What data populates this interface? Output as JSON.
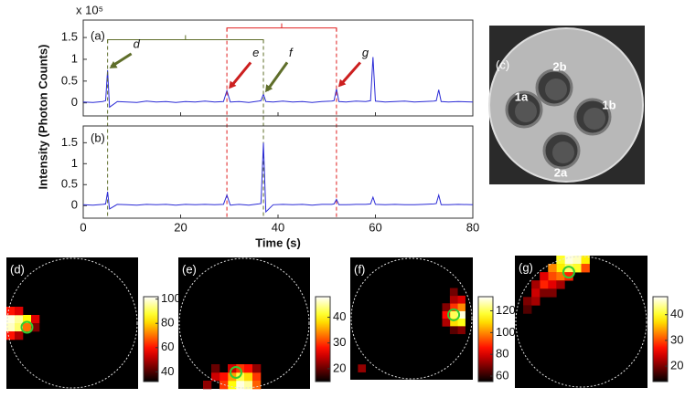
{
  "chart_data": [
    {
      "type": "line",
      "title": "(a)",
      "multiplier": "x 10⁵",
      "ylabel": "Intensity (Photon Counts)",
      "x": [
        0,
        2,
        4,
        4.6,
        5,
        5.4,
        7,
        9,
        11,
        13,
        15,
        17,
        19,
        21,
        23,
        25,
        27,
        28.8,
        29.5,
        30.2,
        32,
        34,
        36,
        36.5,
        37,
        37.5,
        39,
        41,
        43,
        45,
        47,
        49,
        51,
        51.5,
        52,
        52.5,
        54,
        56,
        58,
        59,
        59.5,
        60,
        62,
        64,
        66,
        68,
        70,
        72,
        72.5,
        73,
        73.5,
        75,
        77,
        80
      ],
      "series": [
        {
          "color": "#2b2bd6",
          "values": [
            0.02,
            0.01,
            0.03,
            0.05,
            0.75,
            -0.1,
            0.03,
            0.02,
            0.01,
            0.04,
            0.02,
            0.03,
            0.01,
            0.03,
            0.02,
            0.04,
            0.02,
            0.03,
            0.28,
            0.02,
            0.03,
            0.01,
            0.04,
            0.05,
            0.2,
            0.03,
            0.02,
            0.04,
            0.02,
            0.03,
            0.01,
            0.03,
            0.04,
            0.05,
            0.32,
            0.03,
            0.02,
            0.04,
            0.03,
            0.05,
            1.05,
            0.04,
            0.02,
            0.03,
            0.04,
            0.02,
            0.03,
            0.04,
            0.05,
            0.3,
            0.03,
            0.02,
            0.03,
            0.02
          ]
        }
      ],
      "xlim": [
        0,
        80
      ],
      "xticks": [
        0,
        20,
        40,
        60,
        80
      ],
      "ylim": [
        -0.3,
        1.9
      ],
      "yticks": [
        0,
        0.5,
        1,
        1.5
      ],
      "annotations": [
        {
          "text": "d",
          "x": 5,
          "y": 0.75,
          "color": "#5f6e2a"
        },
        {
          "text": "e",
          "x": 29.5,
          "y": 0.28,
          "color": "#cc1f1f"
        },
        {
          "text": "f",
          "x": 37,
          "y": 0.2,
          "color": "#5f6e2a"
        },
        {
          "text": "g",
          "x": 52,
          "y": 0.32,
          "color": "#cc1f1f"
        }
      ],
      "brackets": [
        {
          "x": [
            5,
            37
          ],
          "y": 1.45,
          "color": "#5f6e2a"
        },
        {
          "x": [
            29.5,
            52
          ],
          "y": 1.72,
          "color": "#e02020"
        }
      ]
    },
    {
      "type": "line",
      "title": "(b)",
      "xlabel": "Time (s)",
      "x": [
        0,
        2,
        4,
        4.6,
        5,
        5.4,
        7,
        9,
        11,
        13,
        15,
        17,
        19,
        21,
        23,
        25,
        27,
        28.8,
        29.5,
        30.2,
        32,
        34,
        36,
        36.5,
        37,
        37.5,
        39,
        41,
        43,
        45,
        47,
        49,
        51,
        51.5,
        52,
        52.5,
        54,
        56,
        58,
        59,
        59.5,
        60,
        62,
        64,
        66,
        68,
        70,
        72,
        72.5,
        73,
        73.5,
        75,
        77,
        80
      ],
      "series": [
        {
          "color": "#2b2bd6",
          "values": [
            0.02,
            0.01,
            0.03,
            0.04,
            0.33,
            -0.08,
            0.03,
            0.02,
            0.01,
            0.03,
            0.02,
            0.03,
            0.01,
            0.03,
            0.02,
            0.03,
            0.02,
            0.03,
            0.25,
            0.01,
            0.03,
            0.01,
            0.04,
            0.05,
            1.5,
            -0.15,
            0.02,
            0.03,
            0.02,
            0.03,
            0.01,
            0.03,
            0.03,
            0.04,
            0.15,
            0.02,
            0.02,
            0.03,
            0.03,
            0.04,
            0.2,
            0.03,
            0.02,
            0.03,
            0.02,
            0.02,
            0.03,
            0.04,
            0.05,
            0.25,
            0.02,
            0.02,
            0.03,
            0.02
          ]
        }
      ],
      "xlim": [
        0,
        80
      ],
      "xticks": [
        0,
        20,
        40,
        60,
        80
      ],
      "ylim": [
        -0.3,
        1.9
      ],
      "yticks": [
        0,
        0.5,
        1,
        1.5
      ]
    },
    {
      "type": "image",
      "title": "(c)",
      "labels": [
        "1a",
        "2b",
        "1b",
        "2a"
      ]
    },
    {
      "type": "heatmap",
      "title": "(d)",
      "clim": [
        32,
        102
      ],
      "cticks": [
        40,
        60,
        80,
        100
      ],
      "cells": [
        [
          0,
          7,
          100
        ],
        [
          1,
          7,
          95
        ],
        [
          2,
          7,
          85
        ],
        [
          0,
          8,
          98
        ],
        [
          1,
          8,
          92
        ],
        [
          2,
          8,
          70
        ],
        [
          3,
          7,
          55
        ],
        [
          0,
          6,
          60
        ],
        [
          1,
          6,
          55
        ],
        [
          0,
          9,
          60
        ],
        [
          1,
          9,
          50
        ],
        [
          3,
          8,
          45
        ]
      ]
    },
    {
      "type": "heatmap",
      "title": "(e)",
      "clim": [
        15,
        48
      ],
      "cticks": [
        20,
        30,
        40
      ],
      "cells": [
        [
          7,
          15,
          47
        ],
        [
          8,
          15,
          45
        ],
        [
          6,
          15,
          40
        ],
        [
          7,
          14,
          42
        ],
        [
          8,
          14,
          38
        ],
        [
          6,
          14,
          35
        ],
        [
          9,
          14,
          30
        ],
        [
          5,
          14,
          28
        ],
        [
          4,
          14,
          25
        ],
        [
          9,
          15,
          32
        ],
        [
          5,
          15,
          30
        ],
        [
          3,
          15,
          22
        ],
        [
          7,
          13,
          30
        ],
        [
          8,
          13,
          28
        ],
        [
          6,
          13,
          25
        ],
        [
          9,
          13,
          22
        ],
        [
          4,
          13,
          20
        ]
      ]
    },
    {
      "type": "heatmap",
      "title": "(f)",
      "clim": [
        55,
        133
      ],
      "cticks": [
        60,
        80,
        100,
        120
      ],
      "cells": [
        [
          14,
          7,
          130
        ],
        [
          13,
          7,
          120
        ],
        [
          14,
          8,
          115
        ],
        [
          13,
          8,
          110
        ],
        [
          14,
          6,
          100
        ],
        [
          13,
          6,
          90
        ],
        [
          12,
          7,
          85
        ],
        [
          12,
          8,
          75
        ],
        [
          14,
          5,
          80
        ],
        [
          13,
          5,
          75
        ],
        [
          12,
          6,
          70
        ],
        [
          13,
          4,
          68
        ],
        [
          14,
          9,
          70
        ],
        [
          13,
          9,
          65
        ],
        [
          1,
          14,
          72
        ]
      ]
    },
    {
      "type": "heatmap",
      "title": "(g)",
      "clim": [
        14,
        47
      ],
      "cticks": [
        20,
        30,
        40
      ],
      "cells": [
        [
          6,
          0,
          46
        ],
        [
          7,
          0,
          45
        ],
        [
          5,
          0,
          40
        ],
        [
          8,
          0,
          38
        ],
        [
          6,
          1,
          42
        ],
        [
          7,
          1,
          40
        ],
        [
          5,
          1,
          38
        ],
        [
          4,
          1,
          33
        ],
        [
          8,
          1,
          30
        ],
        [
          4,
          2,
          30
        ],
        [
          5,
          2,
          32
        ],
        [
          6,
          2,
          28
        ],
        [
          3,
          2,
          25
        ],
        [
          3,
          3,
          28
        ],
        [
          4,
          3,
          25
        ],
        [
          2,
          3,
          22
        ],
        [
          2,
          4,
          24
        ],
        [
          3,
          4,
          20
        ],
        [
          1,
          5,
          20
        ],
        [
          2,
          5,
          22
        ],
        [
          1,
          6,
          18
        ],
        [
          5,
          3,
          22
        ],
        [
          4,
          4,
          20
        ]
      ]
    }
  ]
}
